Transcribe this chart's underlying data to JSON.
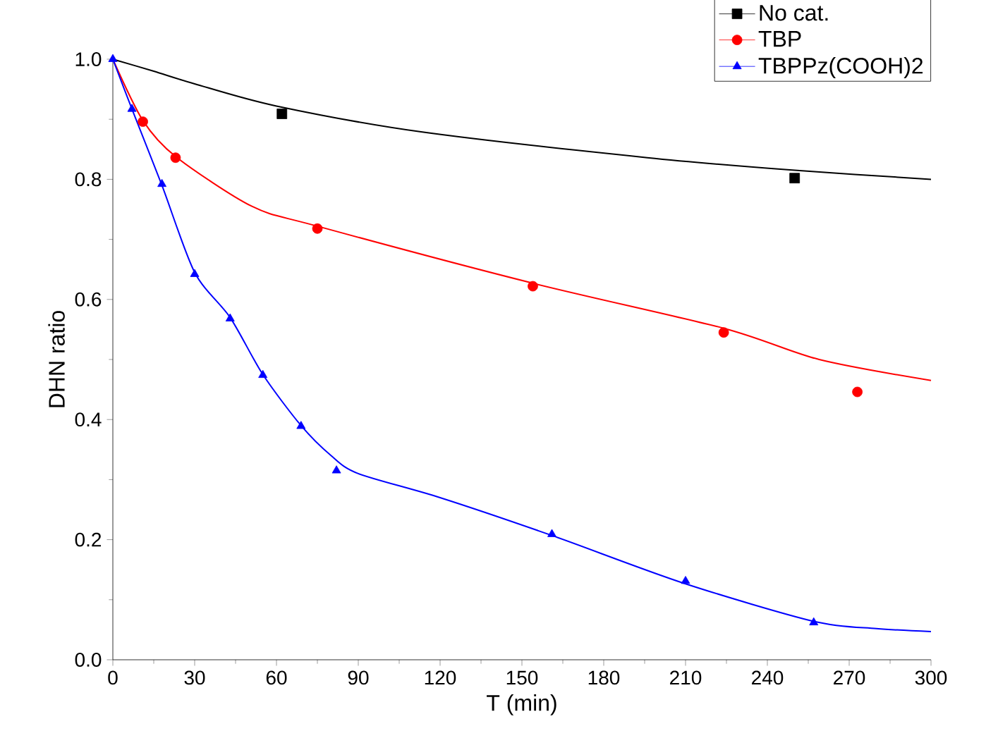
{
  "chart_data": {
    "type": "scatter",
    "xlabel": "T (min)",
    "ylabel": "DHN ratio",
    "xlim": [
      0,
      300
    ],
    "ylim": [
      0,
      1.0
    ],
    "xticks": [
      0,
      30,
      60,
      90,
      120,
      150,
      180,
      210,
      240,
      270,
      300
    ],
    "yticks": [
      {
        "value": 0,
        "label": "0.0"
      },
      0.2,
      0.4,
      0.6,
      0.8,
      {
        "value": 1,
        "label": "1.0"
      }
    ],
    "legend": "top right",
    "grid": false,
    "series": [
      {
        "name": "No cat.",
        "color": "#000000",
        "marker": "square",
        "x": [
          62,
          250
        ],
        "values": [
          0.909,
          0.802
        ]
      },
      {
        "name": "TBP",
        "color": "#ff0000",
        "marker": "circle",
        "x": [
          11,
          23,
          75,
          154,
          224,
          273
        ],
        "values": [
          0.896,
          0.836,
          0.718,
          0.622,
          0.545,
          0.446
        ]
      },
      {
        "name": "TBPPz(COOH)2",
        "color": "#0000ff",
        "marker": "triangle",
        "x": [
          0,
          7,
          18,
          30,
          43,
          55,
          69,
          82,
          161,
          210,
          257
        ],
        "values": [
          1.0,
          0.917,
          0.792,
          0.642,
          0.568,
          0.474,
          0.389,
          0.315,
          0.209,
          0.131,
          0.062
        ]
      },
      {
        "type": "line",
        "color": "#000000",
        "x": [
          0,
          15,
          30,
          60,
          113,
          196,
          250,
          300
        ],
        "values": [
          1.0,
          0.98,
          0.959,
          0.922,
          0.879,
          0.836,
          0.815,
          0.8
        ]
      },
      {
        "type": "line",
        "color": "#ff0000",
        "x": [
          0,
          11,
          23,
          51,
          75,
          154,
          224,
          259,
          300
        ],
        "values": [
          1.0,
          0.898,
          0.838,
          0.755,
          0.722,
          0.627,
          0.552,
          0.5,
          0.465
        ]
      },
      {
        "type": "line",
        "color": "#0000ff",
        "x": [
          0,
          7,
          18,
          30,
          43,
          55,
          69,
          80,
          90,
          120,
          161,
          209,
          257,
          280,
          300
        ],
        "values": [
          1.0,
          0.917,
          0.79,
          0.645,
          0.57,
          0.475,
          0.39,
          0.34,
          0.31,
          0.27,
          0.207,
          0.128,
          0.064,
          0.052,
          0.047
        ]
      }
    ]
  }
}
